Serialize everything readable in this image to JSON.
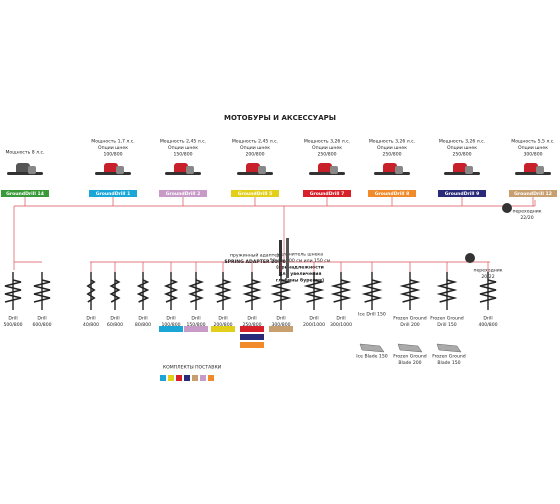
{
  "title": "МОТОБУРЫ И АКСЕССУАРЫ",
  "models": [
    {
      "lines": [
        "Мощность 8 л.с."
      ],
      "name": "GroundDrill 14"
    },
    {
      "lines": [
        "Мощность 1,7 л.с.",
        "Опции шнек",
        "100/800"
      ],
      "name": "GroundDrill 1"
    },
    {
      "lines": [
        "Мощность 2,45 л.с.",
        "Опции шнек",
        "150/800"
      ],
      "name": "GroundDrill 2"
    },
    {
      "lines": [
        "Мощность 2,45 л.с.",
        "Опции шнек",
        "200/800"
      ],
      "name": "GroundDrill 5"
    },
    {
      "lines": [
        "Мощность 3,26 л.с.",
        "Опции шнек",
        "250/800"
      ],
      "name": "GroundDrill 7"
    },
    {
      "lines": [
        "Мощность 3,26 л.с.",
        "Опции шнек",
        "250/800"
      ],
      "name": "GroundDrill 8"
    },
    {
      "lines": [
        "Мощность 3,26 л.с.",
        "Опции шнек",
        "250/800"
      ],
      "name": "GroundDrill 9"
    },
    {
      "lines": [
        "Мощность 5,5 л.с.",
        "Опции шнек",
        "300/800"
      ],
      "name": "GroundDrill 12"
    }
  ],
  "adapters": [
    {
      "lines": [
        "переходник",
        "22/20"
      ]
    },
    {
      "lines": [
        "пружинный адаптер",
        "SPRING ADAPTER 20/20"
      ]
    },
    {
      "lines": [
        "удлинитель шнека",
        "50 см, 100 см или 150 см",
        "(принадлежности",
        "для увеличения",
        "глубины бурения)"
      ]
    },
    {
      "lines": [
        "переходник",
        "20/22"
      ]
    }
  ],
  "augers": [
    [
      "Drill",
      "500/800"
    ],
    [
      "Drill",
      "600/800"
    ],
    [
      "Drill",
      "40/800"
    ],
    [
      "Drill",
      "60/800"
    ],
    [
      "Drill",
      "80/800"
    ],
    [
      "Drill",
      "100/800"
    ],
    [
      "Drill",
      "150/800"
    ],
    [
      "Drill",
      "200/800"
    ],
    [
      "Drill",
      "250/800"
    ],
    [
      "Drill",
      "300/800"
    ],
    [
      "Drill",
      "200/1000"
    ],
    [
      "Drill",
      "300/1000"
    ],
    [
      "Ice Drill 150"
    ],
    [
      "Frozen Ground",
      "Drill 200"
    ],
    [
      "Frozen Ground",
      "Drill 150"
    ],
    [
      "Drill",
      "400/800"
    ]
  ],
  "blades": [
    [
      "Ice Blade 150"
    ],
    [
      "Frozen Ground",
      "Blade 200"
    ],
    [
      "Frozen Ground",
      "Blade 150"
    ]
  ],
  "legend_title": "КОМПЛЕКТЫ ПОСТАВКИ"
}
